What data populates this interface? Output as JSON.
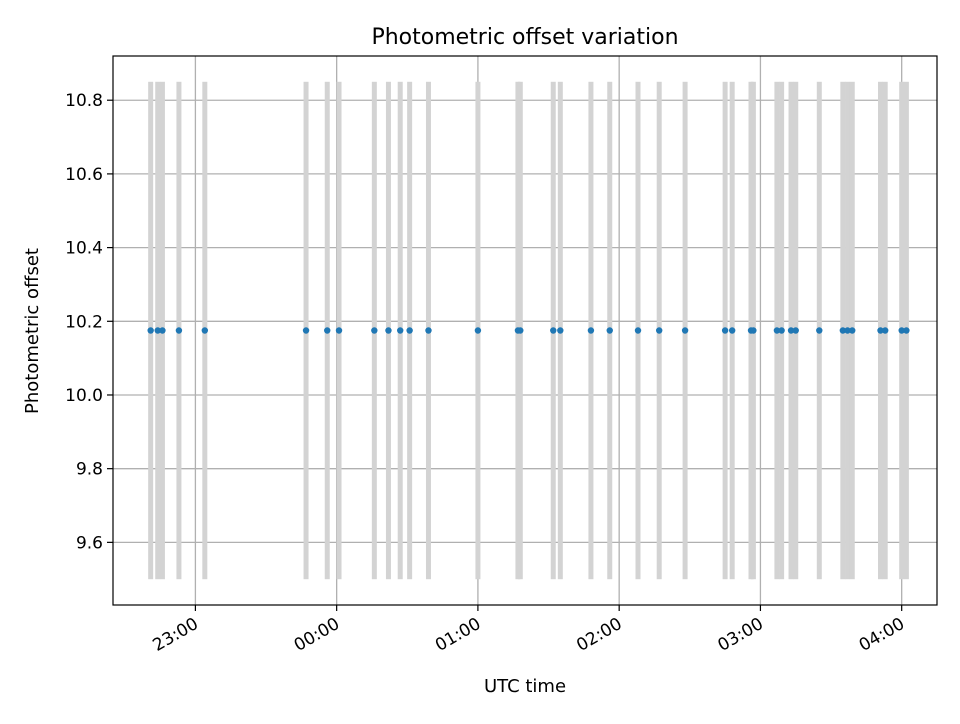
{
  "chart_data": {
    "type": "scatter",
    "title": "Photometric offset variation",
    "xlabel": "UTC time",
    "ylabel": "Photometric offset",
    "x_tick_labels": [
      "23:00",
      "00:00",
      "01:00",
      "02:00",
      "03:00",
      "04:00"
    ],
    "y_tick_labels": [
      "9.6",
      "9.8",
      "10.0",
      "10.2",
      "10.4",
      "10.6",
      "10.8"
    ],
    "y_ticks": [
      9.6,
      9.8,
      10.0,
      10.2,
      10.4,
      10.6,
      10.8
    ],
    "xlim": [
      "22:25",
      "04:15"
    ],
    "ylim": [
      9.43,
      10.92
    ],
    "grid": true,
    "bar_range": [
      9.5,
      10.85
    ],
    "colors": {
      "points": "#1f77b4",
      "bars": "#d3d3d3",
      "grid": "#b0b0b0"
    },
    "series": [
      {
        "x": [
          "22:41",
          "22:44",
          "22:46",
          "22:53",
          "23:04",
          "23:47",
          "23:56",
          "24:01",
          "24:16",
          "24:22",
          "24:27",
          "24:31",
          "24:39",
          "25:00",
          "25:17",
          "25:18",
          "25:32",
          "25:35",
          "25:48",
          "25:56",
          "26:08",
          "26:17",
          "26:28",
          "26:45",
          "26:48",
          "26:56",
          "26:57",
          "27:07",
          "27:09",
          "27:13",
          "27:15",
          "27:25",
          "27:35",
          "27:37",
          "27:39",
          "27:51",
          "27:53",
          "28:00",
          "28:02"
        ],
        "y": [
          10.175,
          10.175,
          10.175,
          10.175,
          10.175,
          10.175,
          10.175,
          10.175,
          10.175,
          10.175,
          10.175,
          10.175,
          10.175,
          10.175,
          10.175,
          10.175,
          10.175,
          10.175,
          10.175,
          10.175,
          10.175,
          10.175,
          10.175,
          10.175,
          10.175,
          10.175,
          10.175,
          10.175,
          10.175,
          10.175,
          10.175,
          10.175,
          10.175,
          10.175,
          10.175,
          10.175,
          10.175,
          10.175,
          10.175
        ]
      }
    ]
  }
}
